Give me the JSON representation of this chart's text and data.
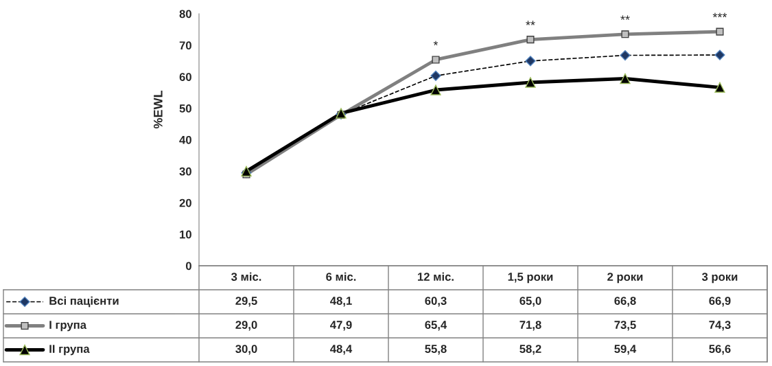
{
  "chart_data": {
    "type": "line",
    "ylabel": "%EWL",
    "categories": [
      "3 міс.",
      "6 міс.",
      "12 міс.",
      "1,5 роки",
      "2 роки",
      "3 роки"
    ],
    "series": [
      {
        "name": "Всі пацієнти",
        "color": "#000000",
        "marker": "diamond",
        "line_style": "dashed",
        "values": [
          29.5,
          48.1,
          60.3,
          65.0,
          66.8,
          66.9
        ],
        "value_labels": [
          "29,5",
          "48,1",
          "60,3",
          "65,0",
          "66,8",
          "66,9"
        ]
      },
      {
        "name": "І група",
        "color": "#808080",
        "marker": "square",
        "line_style": "solid",
        "values": [
          29.0,
          47.9,
          65.4,
          71.8,
          73.5,
          74.3
        ],
        "value_labels": [
          "29,0",
          "47,9",
          "65,4",
          "71,8",
          "73,5",
          "74,3"
        ]
      },
      {
        "name": "ІІ група",
        "color": "#000000",
        "marker": "triangle",
        "line_style": "solid",
        "values": [
          30.0,
          48.4,
          55.8,
          58.2,
          59.4,
          56.6
        ],
        "value_labels": [
          "30,0",
          "48,4",
          "55,8",
          "58,2",
          "59,4",
          "56,6"
        ]
      }
    ],
    "ylim": [
      0,
      80
    ],
    "yticks": [
      0,
      10,
      20,
      30,
      40,
      50,
      60,
      70,
      80
    ],
    "grid": false,
    "legend": "bottom left",
    "annotations": [
      {
        "text": "*",
        "x": "12 міс.",
        "y": 65.4
      },
      {
        "text": "**",
        "x": "1,5 роки",
        "y": 71.8
      },
      {
        "text": "**",
        "x": "2 роки",
        "y": 73.5
      },
      {
        "text": "***",
        "x": "3 роки",
        "y": 74.3
      }
    ]
  }
}
